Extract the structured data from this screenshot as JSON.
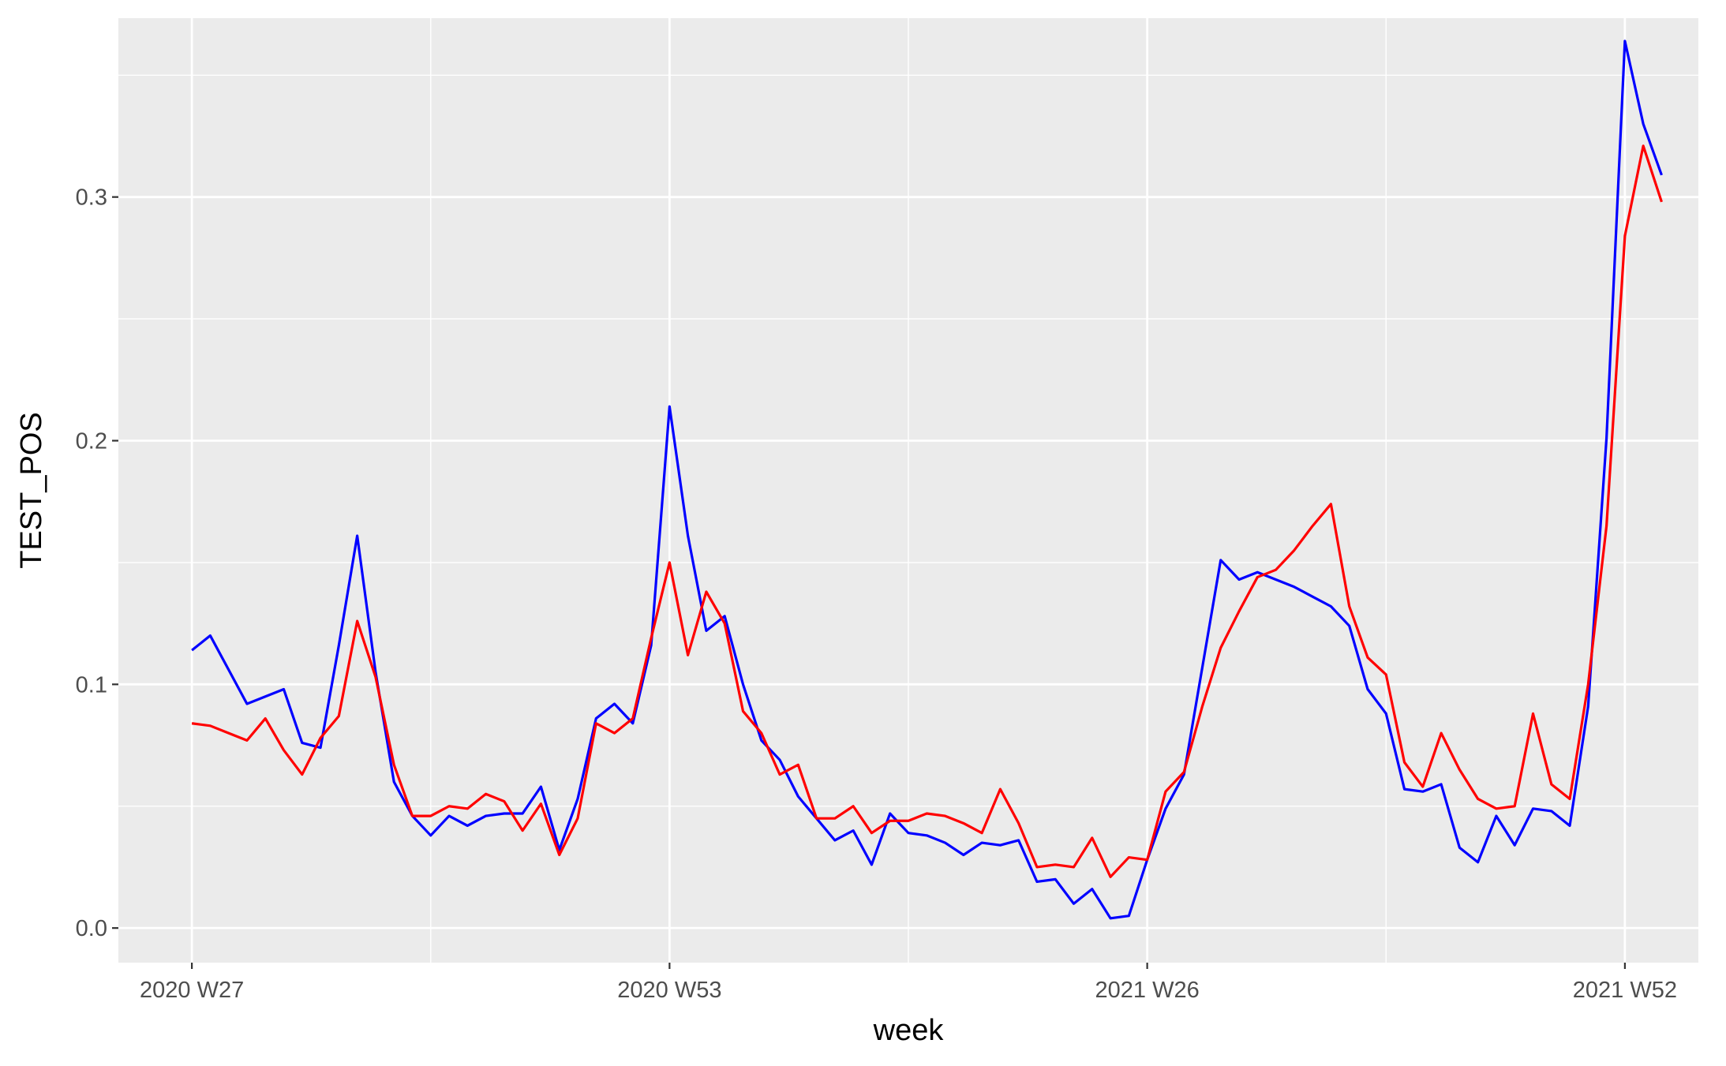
{
  "chart_data": {
    "type": "line",
    "title": "",
    "xlabel": "week",
    "ylabel": "TEST_POS",
    "x_tick_labels": [
      "2020 W27",
      "2020 W53",
      "2021 W26",
      "2021 W52"
    ],
    "y_tick_labels": [
      "0.0",
      "0.1",
      "0.2",
      "0.3"
    ],
    "y_ticks": [
      0.0,
      0.1,
      0.2,
      0.3
    ],
    "ylim": [
      -0.0142,
      0.3734
    ],
    "x_tick_weeks": [
      0,
      26,
      52,
      78
    ],
    "x_minor_weeks": [
      13,
      39,
      65
    ],
    "xlim": [
      -4,
      82
    ],
    "grid": true,
    "legend": "none",
    "colors": {
      "panel": "#EBEBEB",
      "grid": "#FFFFFF",
      "tick_text": "#4D4D4D",
      "tick_mark": "#333333"
    },
    "x_weeks": [
      0,
      1,
      2,
      3,
      4,
      5,
      6,
      7,
      8,
      9,
      10,
      11,
      12,
      13,
      14,
      15,
      16,
      17,
      18,
      19,
      20,
      21,
      22,
      23,
      24,
      25,
      26,
      27,
      28,
      29,
      30,
      31,
      32,
      33,
      34,
      35,
      36,
      37,
      38,
      39,
      40,
      41,
      42,
      43,
      44,
      45,
      46,
      47,
      48,
      49,
      50,
      51,
      52,
      53,
      54,
      55,
      56,
      57,
      58,
      59,
      60,
      61,
      62,
      63,
      64,
      65,
      66,
      67,
      68,
      69,
      70,
      71,
      72,
      73,
      74,
      75,
      76,
      77,
      78,
      79,
      80
    ],
    "series": [
      {
        "color": "#0000FF",
        "values": [
          0.114,
          0.12,
          0.106,
          0.092,
          0.095,
          0.098,
          0.076,
          0.074,
          0.116,
          0.161,
          0.105,
          0.06,
          0.046,
          0.038,
          0.046,
          0.042,
          0.046,
          0.047,
          0.047,
          0.058,
          0.032,
          0.053,
          0.086,
          0.092,
          0.084,
          0.116,
          0.214,
          0.161,
          0.122,
          0.128,
          0.1,
          0.077,
          0.069,
          0.054,
          0.045,
          0.036,
          0.04,
          0.026,
          0.047,
          0.039,
          0.038,
          0.035,
          0.03,
          0.035,
          0.034,
          0.036,
          0.019,
          0.02,
          0.01,
          0.016,
          0.004,
          0.005,
          0.028,
          0.049,
          0.063,
          0.107,
          0.151,
          0.143,
          0.146,
          0.143,
          0.14,
          0.136,
          0.132,
          0.124,
          0.098,
          0.088,
          0.057,
          0.056,
          0.059,
          0.033,
          0.027,
          0.046,
          0.034,
          0.049,
          0.048,
          0.042,
          0.091,
          0.201,
          0.364,
          0.33,
          0.309
        ]
      },
      {
        "color": "#FF0000",
        "values": [
          0.084,
          0.083,
          0.08,
          0.077,
          0.086,
          0.073,
          0.063,
          0.078,
          0.087,
          0.126,
          0.103,
          0.067,
          0.046,
          0.046,
          0.05,
          0.049,
          0.055,
          0.052,
          0.04,
          0.051,
          0.03,
          0.045,
          0.084,
          0.08,
          0.086,
          0.119,
          0.15,
          0.112,
          0.138,
          0.125,
          0.089,
          0.08,
          0.063,
          0.067,
          0.045,
          0.045,
          0.05,
          0.039,
          0.044,
          0.044,
          0.047,
          0.046,
          0.043,
          0.039,
          0.057,
          0.043,
          0.025,
          0.026,
          0.025,
          0.037,
          0.021,
          0.029,
          0.028,
          0.056,
          0.064,
          0.091,
          0.115,
          0.13,
          0.144,
          0.147,
          0.155,
          0.165,
          0.174,
          0.132,
          0.111,
          0.104,
          0.068,
          0.058,
          0.08,
          0.065,
          0.053,
          0.049,
          0.05,
          0.088,
          0.059,
          0.053,
          0.1,
          0.165,
          0.284,
          0.321,
          0.298
        ]
      }
    ]
  }
}
